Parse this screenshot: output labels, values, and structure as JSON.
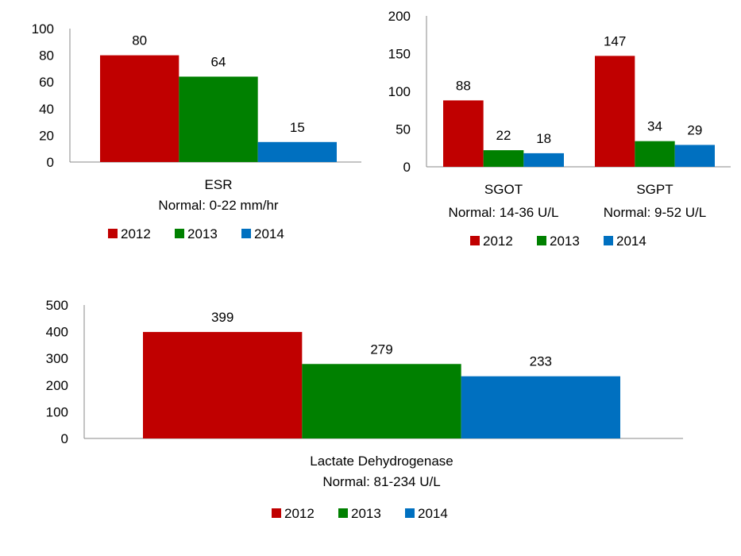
{
  "chart_data": [
    {
      "type": "bar",
      "categories": [
        [
          "ESR",
          "Normal: 0-22 mm/hr"
        ]
      ],
      "series": [
        {
          "name": "2012",
          "values": [
            80
          ],
          "color": "#C00000"
        },
        {
          "name": "2013",
          "values": [
            64
          ],
          "color": "#008000"
        },
        {
          "name": "2014",
          "values": [
            15
          ],
          "color": "#0070C0"
        }
      ],
      "ylim": [
        0,
        100
      ],
      "yticks": [
        0,
        20,
        40,
        60,
        80,
        100
      ],
      "grid": false,
      "legend": "bottom"
    },
    {
      "type": "bar",
      "categories": [
        [
          "SGOT",
          "Normal: 14-36 U/L"
        ],
        [
          "SGPT",
          "Normal: 9-52 U/L"
        ]
      ],
      "series": [
        {
          "name": "2012",
          "values": [
            88,
            147
          ],
          "color": "#C00000"
        },
        {
          "name": "2013",
          "values": [
            22,
            34
          ],
          "color": "#008000"
        },
        {
          "name": "2014",
          "values": [
            18,
            29
          ],
          "color": "#0070C0"
        }
      ],
      "ylim": [
        0,
        200
      ],
      "yticks": [
        0,
        50,
        100,
        150,
        200
      ],
      "grid": false,
      "legend": "bottom"
    },
    {
      "type": "bar",
      "categories": [
        [
          "Lactate Dehydrogenase",
          "Normal: 81-234 U/L"
        ]
      ],
      "series": [
        {
          "name": "2012",
          "values": [
            399
          ],
          "color": "#C00000"
        },
        {
          "name": "2013",
          "values": [
            279
          ],
          "color": "#008000"
        },
        {
          "name": "2014",
          "values": [
            233
          ],
          "color": "#0070C0"
        }
      ],
      "ylim": [
        0,
        500
      ],
      "yticks": [
        0,
        100,
        200,
        300,
        400,
        500
      ],
      "grid": false,
      "legend": "bottom"
    }
  ]
}
